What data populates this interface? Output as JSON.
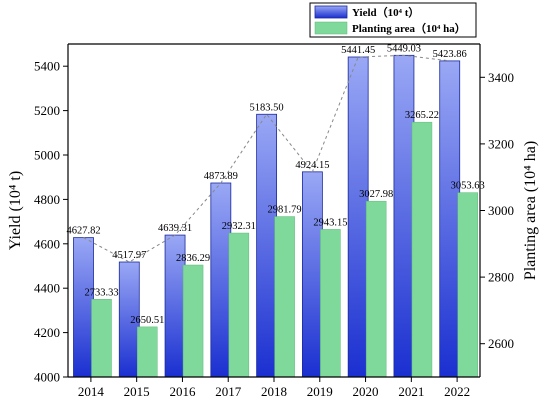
{
  "chart_data": {
    "type": "bar",
    "categories": [
      "2014",
      "2015",
      "2016",
      "2017",
      "2018",
      "2019",
      "2020",
      "2021",
      "2022"
    ],
    "series": [
      {
        "name": "Yield（10⁴ t）",
        "axis": "left",
        "color": "#2b44d6",
        "values": [
          4627.82,
          4517.97,
          4639.31,
          4873.89,
          5183.5,
          4924.15,
          5441.45,
          5449.03,
          5423.86
        ],
        "labels": [
          "4627.82",
          "4517.97",
          "4639.31",
          "4873.89",
          "5183.50",
          "4924.15",
          "5441.45",
          "5449.03",
          "5423.86"
        ]
      },
      {
        "name": "Planting area（10⁴ ha）",
        "axis": "right",
        "color": "#7fd99b",
        "values": [
          2733.33,
          2650.51,
          2836.29,
          2932.31,
          2981.79,
          2943.15,
          3027.98,
          3265.22,
          3053.63
        ],
        "labels": [
          "2733.33",
          "2650.51",
          "2836.29",
          "2932.31",
          "2981.79",
          "2943.15",
          "3027.98",
          "3265.22",
          "3053.63"
        ]
      }
    ],
    "trend_line": {
      "series": "Yield（10⁴ t）",
      "style": "dashed",
      "color": "#888888"
    },
    "ylabel": "Yield (10⁴ t)",
    "y2label": "Planting area (10⁴ ha)",
    "ylim": [
      4000,
      5500
    ],
    "yticks": [
      "4000",
      "4200",
      "4400",
      "4600",
      "4800",
      "5000",
      "5200",
      "5400"
    ],
    "y2lim": [
      2500,
      3500
    ],
    "y2ticks": [
      "2600",
      "2800",
      "3000",
      "3200",
      "3400"
    ],
    "legend": "top-right",
    "grid": false
  }
}
